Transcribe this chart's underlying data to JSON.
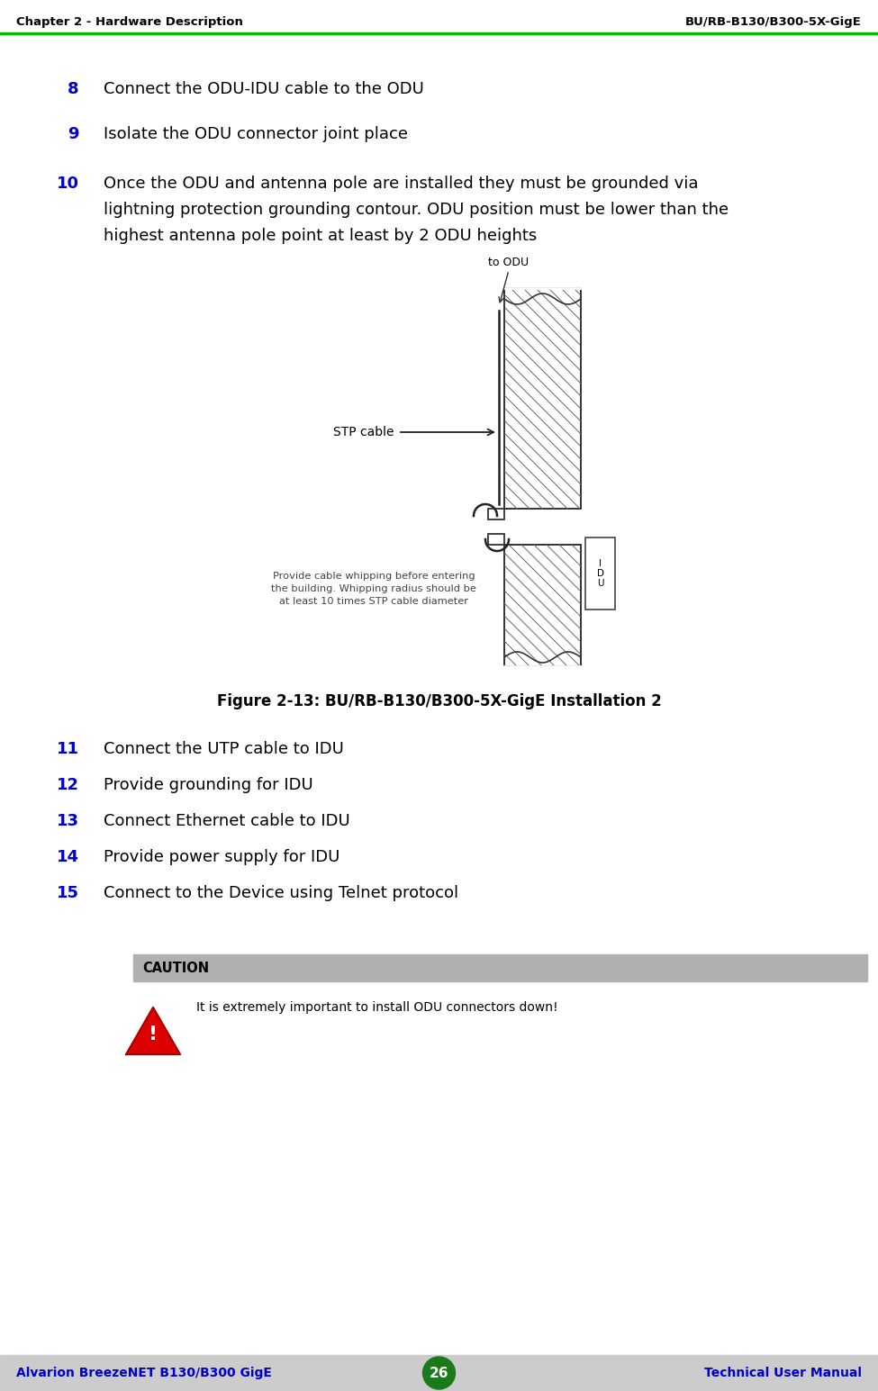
{
  "header_left": "Chapter 2 - Hardware Description",
  "header_right": "BU/RB-B130/B300-5X-GigE",
  "footer_left": "Alvarion BreezeNET B130/B300 GigE",
  "footer_center": "26",
  "footer_right": "Technical User Manual",
  "header_line_color": "#00bb00",
  "footer_bg_color": "#cccccc",
  "header_text_color": "#000000",
  "footer_text_color": "#0000cc",
  "page_bg": "#ffffff",
  "items_top": [
    {
      "num": "8",
      "text": "Connect the ODU-IDU cable to the ODU",
      "multiline": false
    },
    {
      "num": "9",
      "text": "Isolate the ODU connector joint place",
      "multiline": false
    },
    {
      "num": "10",
      "text": "Once the ODU and antenna pole are installed they must be grounded via\nlightning protection grounding contour. ODU position must be lower than the\nhighest antenna pole point at least by 2 ODU heights",
      "multiline": true
    }
  ],
  "items_bottom": [
    {
      "num": "11",
      "text": "Connect the UTP cable to IDU"
    },
    {
      "num": "12",
      "text": "Provide grounding for IDU"
    },
    {
      "num": "13",
      "text": "Connect Ethernet cable to IDU"
    },
    {
      "num": "14",
      "text": "Provide power supply for IDU"
    },
    {
      "num": "15",
      "text": "Connect to the Device using Telnet protocol"
    }
  ],
  "figure_caption": "Figure 2-13: BU/RB-B130/B300-5X-GigE Installation 2",
  "caution_title": "CAUTION",
  "caution_text": "It is extremely important to install ODU connectors down!",
  "caution_bg": "#b0b0b0",
  "num_color": "#0000cc",
  "text_color": "#000000",
  "body_font_size": 13,
  "diagram_label_to_odu": "to ODU",
  "diagram_label_stp": "STP cable",
  "diagram_label_whipping": "Provide cable whipping before entering\nthe building. Whipping radius should be\nat least 10 times STP cable diameter",
  "diagram_idu_label": "I\nD\nU"
}
